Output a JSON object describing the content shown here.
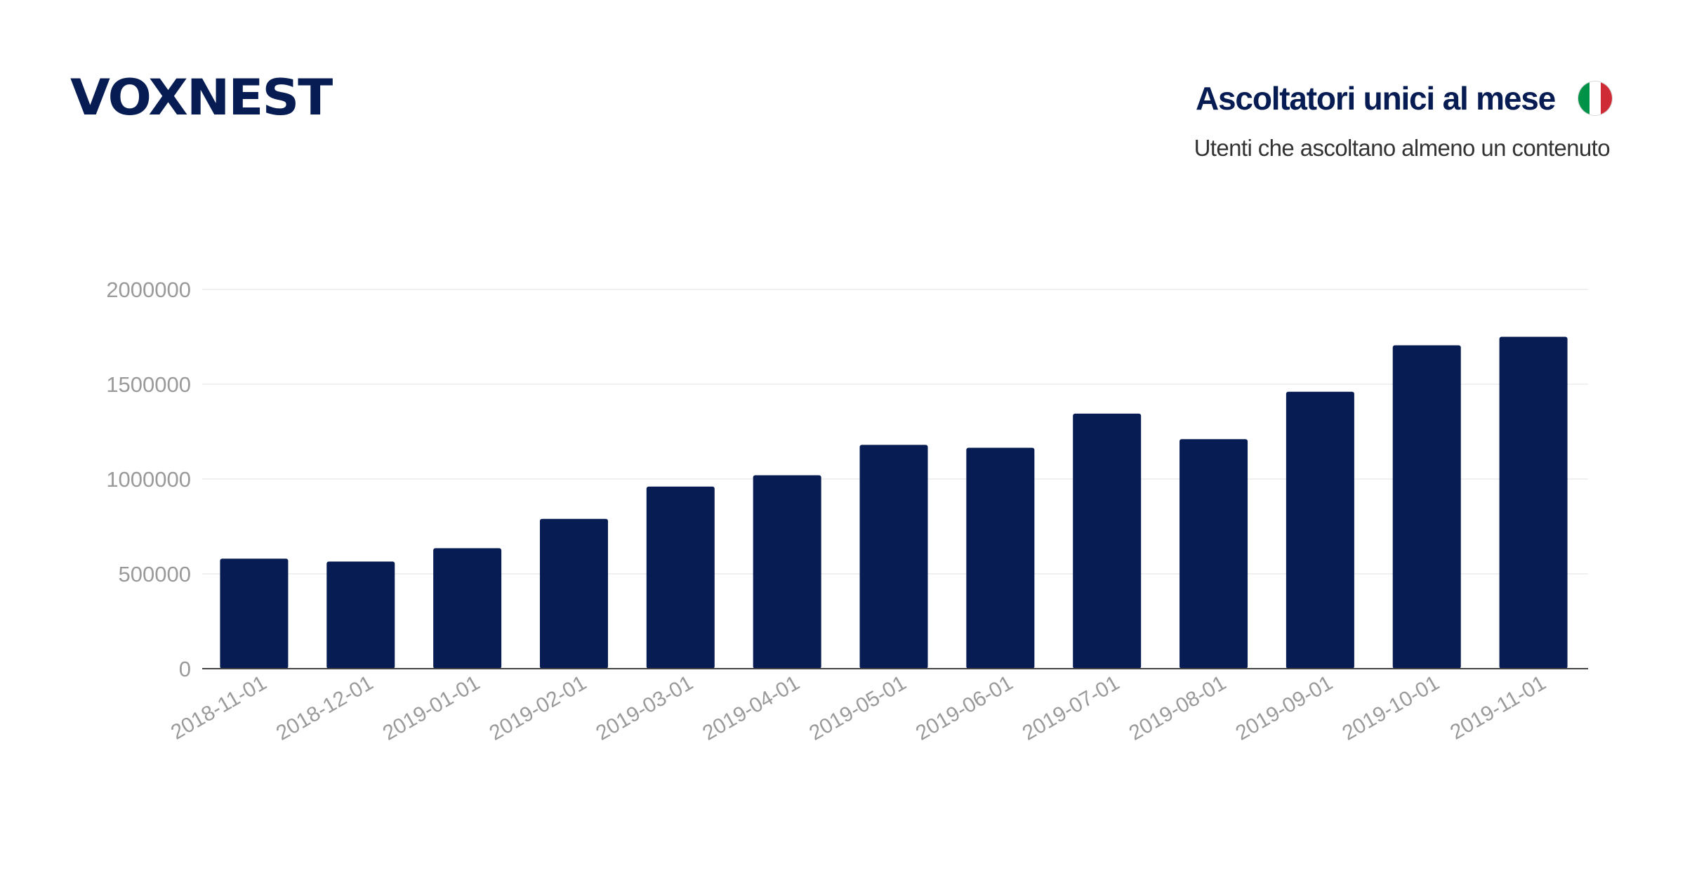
{
  "brand": {
    "logo_text": "VOXNEST"
  },
  "header": {
    "title": "Ascoltatori unici al mese",
    "subtitle": "Utenti che ascoltano almeno un contenuto",
    "flag_icon": "italy-flag-icon",
    "flag_colors": [
      "#009246",
      "#ffffff",
      "#ce2b37"
    ]
  },
  "colors": {
    "bar": "#071c52",
    "grid": "#ececec",
    "axis": "#444444",
    "tick_text": "#9a9a9a"
  },
  "chart_data": {
    "type": "bar",
    "title": "Ascoltatori unici al mese",
    "subtitle": "Utenti che ascoltano almeno un contenuto",
    "xlabel": "",
    "ylabel": "",
    "ylim": [
      0,
      2000000
    ],
    "yticks": [
      0,
      500000,
      1000000,
      1500000,
      2000000
    ],
    "ytick_labels": [
      "0",
      "500000",
      "1000000",
      "1500000",
      "2000000"
    ],
    "grid": true,
    "legend": "none",
    "categories": [
      "2018-11-01",
      "2018-12-01",
      "2019-01-01",
      "2019-02-01",
      "2019-03-01",
      "2019-04-01",
      "2019-05-01",
      "2019-06-01",
      "2019-07-01",
      "2019-08-01",
      "2019-09-01",
      "2019-10-01",
      "2019-11-01"
    ],
    "values": [
      580000,
      565000,
      635000,
      790000,
      960000,
      1020000,
      1180000,
      1165000,
      1345000,
      1210000,
      1460000,
      1705000,
      1750000
    ]
  }
}
